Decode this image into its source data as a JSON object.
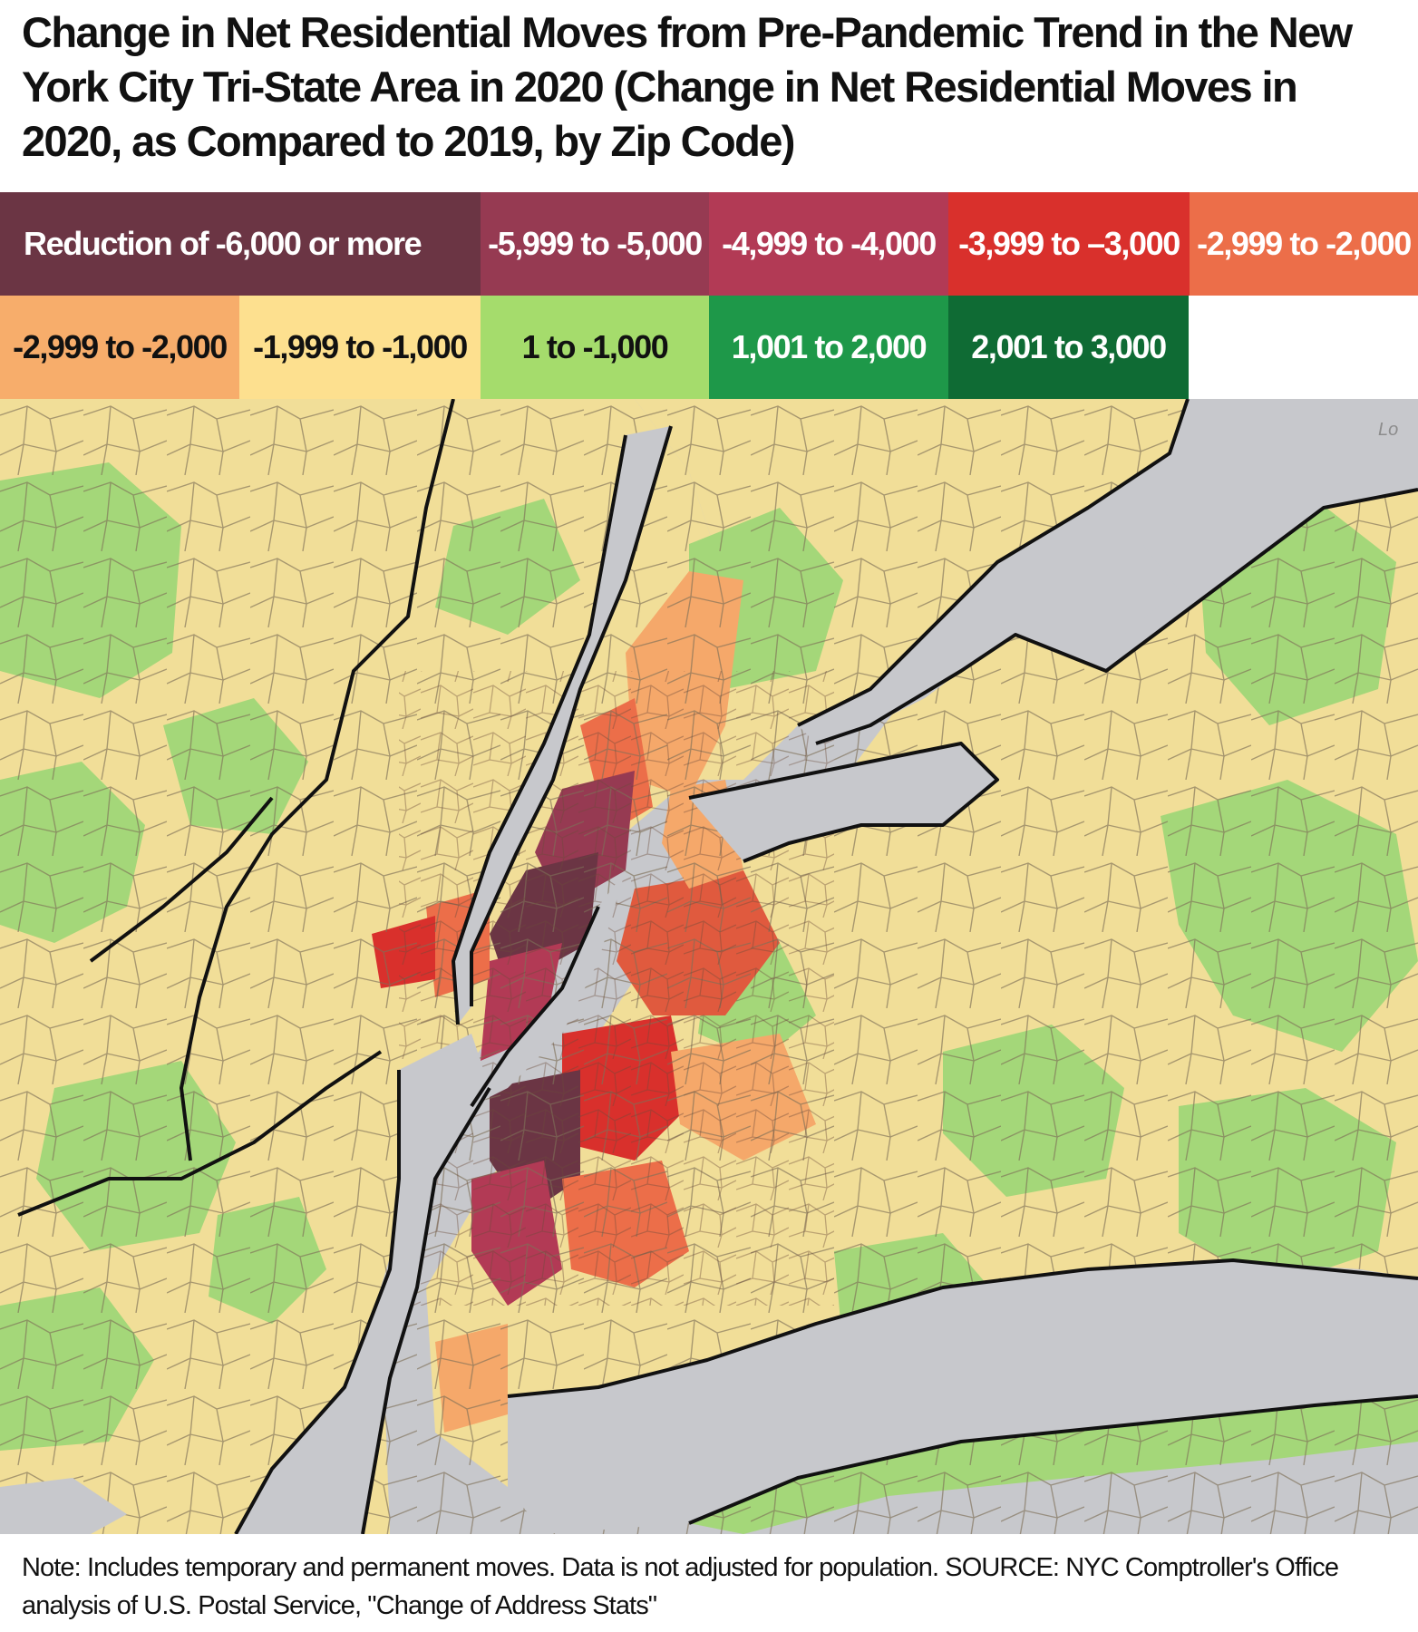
{
  "title": "Change in Net Residential Moves from Pre-Pandemic Trend in the New York City Tri-State Area in 2020 (Change in Net Residential Moves in 2020, as Compared to 2019, by Zip Code)",
  "legend": {
    "row1": [
      {
        "label": "Reduction of -6,000 or more",
        "color": "#6b3544",
        "text_color": "#ffffff"
      },
      {
        "label": "-5,999 to -5,000",
        "color": "#963a52",
        "text_color": "#ffffff"
      },
      {
        "label": "-4,999 to -4,000",
        "color": "#b23a55",
        "text_color": "#ffffff"
      },
      {
        "label": "-3,999 to –3,000",
        "color": "#d9302c",
        "text_color": "#ffffff"
      },
      {
        "label": "-2,999 to -2,000",
        "color": "#ec6e49",
        "text_color": "#ffffff"
      }
    ],
    "row2": [
      {
        "label": "-2,999 to -2,000",
        "color": "#f7ad6b",
        "text_color": "#111111"
      },
      {
        "label": "-1,999 to -1,000",
        "color": "#fde08f",
        "text_color": "#111111"
      },
      {
        "label": "1 to -1,000",
        "color": "#a5dc6c",
        "text_color": "#111111"
      },
      {
        "label": "1,001 to 2,000",
        "color": "#1e9849",
        "text_color": "#ffffff"
      },
      {
        "label": "2,001 to 3,000",
        "color": "#0f6b34",
        "text_color": "#ffffff"
      }
    ]
  },
  "map": {
    "water_color": "#c7c8cc",
    "zip_colors": {
      "tan": "#f1de98",
      "green": "#a4d779",
      "border": "#7d6f56",
      "coast": "#111111"
    },
    "corner_label": "Lo"
  },
  "note": "Note: Includes temporary and permanent moves. Data is not adjusted for population. SOURCE: NYC Comptroller's Office analysis of U.S. Postal Service, \"Change of Address Stats\""
}
